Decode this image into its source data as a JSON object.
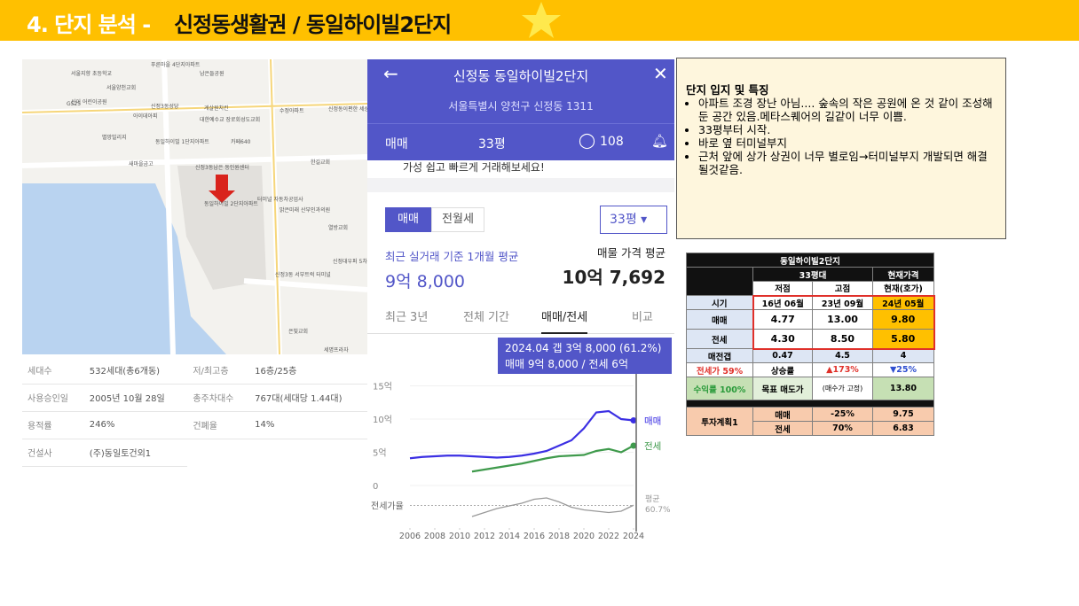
{
  "header": {
    "number_title": "4. 단지 분석 - ",
    "title": "신정동생활권 /  동일하이빌2단지"
  },
  "map": {
    "labels": [
      "푸른마을 4단지아파트",
      "서울지향 초등학교",
      "남은들공원",
      "서울양천교회",
      "신이 어린이공원",
      "GS25",
      "신정3동성당",
      "게살원치킨",
      "수정아파트",
      "신정동이편한 세상아파트",
      "아이데아피",
      "대한예수교 장로회성도교회",
      "별망빌리지",
      "동일하이빌 1단지아파트",
      "카페640",
      "새마을금고",
      "신정3동남은 동인원센터",
      "한길교회",
      "동일하이빌 2단지아파트",
      "터미널 자동차공업사",
      "밝은미래 산부인과의원",
      "열방교회",
      "신정3동 서부트럭 터미널",
      "신정대우퍼 5차오피스",
      "은빛교회",
      "세명프라자"
    ]
  },
  "info_table": {
    "rows": [
      [
        "세대수",
        "532세대(총6개동)",
        "저/최고층",
        "16층/25층"
      ],
      [
        "사용승인일",
        "2005년 10월 28일",
        "총주차대수",
        "767대(세대당 1.44대)"
      ],
      [
        "용적률",
        "246%",
        "건폐율",
        "14%"
      ],
      [
        "건설사",
        "(주)동일토건외1"
      ]
    ]
  },
  "app": {
    "title": "신정동 동일하이빌2단지",
    "address": "서울특별시 양천구 신정동 1311",
    "deal_type": "매매",
    "size": "33평",
    "comments": "108",
    "banner": "가성 쉽고 빠르게 거래해보세요!",
    "tabs": [
      "매매",
      "전월세"
    ],
    "size_select": "33평",
    "recent_label": "최근 실거래 기준 1개월 평균",
    "recent_price": "9억 8,000",
    "listing_label": "매물 가격 평균",
    "listing_price": "10억 7,692",
    "periods": [
      "최근 3년",
      "전체 기간",
      "매매/전세",
      "비교"
    ],
    "tooltip": [
      "2024.04  갭 3억 8,000 (61.2%)",
      "매매 9억 8,000 / 전세 6억"
    ]
  },
  "chart_data": {
    "type": "line",
    "x": [
      2006,
      2007,
      2008,
      2009,
      2010,
      2011,
      2012,
      2013,
      2014,
      2015,
      2016,
      2017,
      2018,
      2019,
      2020,
      2021,
      2022,
      2023,
      2024
    ],
    "xlim": [
      2006,
      2024
    ],
    "xticks": [
      2006,
      2008,
      2010,
      2012,
      2014,
      2016,
      2018,
      2020,
      2022,
      2024
    ],
    "ylim": [
      0,
      15
    ],
    "yticks": [
      {
        "value": 15,
        "label": "15억"
      },
      {
        "value": 10,
        "label": "10억"
      },
      {
        "value": 5,
        "label": "5억"
      },
      0
    ],
    "series": [
      {
        "name": "매매",
        "color": "#3b2fe3",
        "values": [
          4.1,
          4.3,
          4.4,
          4.5,
          4.5,
          4.4,
          4.3,
          4.2,
          4.3,
          4.5,
          4.8,
          5.2,
          6.0,
          6.8,
          8.6,
          11.0,
          11.2,
          10.0,
          9.8
        ]
      },
      {
        "name": "전세",
        "color": "#3f9a4c",
        "values": [
          null,
          null,
          null,
          null,
          null,
          2.1,
          2.4,
          2.7,
          3.0,
          3.3,
          3.7,
          4.1,
          4.4,
          4.5,
          4.6,
          5.2,
          5.5,
          5.0,
          6.0
        ]
      }
    ],
    "ratio": {
      "name": "전세가율",
      "ylim": [
        40,
        80
      ],
      "values": [
        null,
        null,
        null,
        null,
        null,
        44,
        50,
        56,
        60,
        64,
        70,
        72,
        66,
        58,
        54,
        52,
        50,
        52,
        61
      ],
      "average_label": "평균",
      "average": 60.7,
      "average_value_label": "60.7%"
    }
  },
  "notes": {
    "title": "단지 입지 및 특징",
    "bullets": [
      "아파트 조경 장난 아님.... 숲속의 작은 공원에 온 것 같이 조성해 둔 공간 있음.메타스퀘어의 길같이 너무 이쁨.",
      "33평부터 시작.",
      "바로 옆 터미널부지",
      "근처 앞에 상가 상권이 너무 별로임→터미널부지 개발되면 해결될것같음."
    ]
  },
  "invest_table": {
    "title": "동일하이빌2단지",
    "group": "33평대",
    "current": "현재가격",
    "low": "저점",
    "high": "고점",
    "ask": "현재(호가)",
    "rows": [
      [
        "시기",
        "16년 06월",
        "23년 09월",
        "24년 05월"
      ],
      [
        "매매",
        "4.77",
        "13.00",
        "9.80"
      ],
      [
        "전세",
        "4.30",
        "8.50",
        "5.80"
      ],
      [
        "매전갭",
        "0.47",
        "4.5",
        "4"
      ],
      [
        "전세가 59%",
        "상승률",
        "▲173%",
        "▼25%"
      ],
      [
        "수익률 100%",
        "목표 매도가",
        "(매수가 고정)",
        "13.80"
      ]
    ],
    "plan": {
      "name": "투자계획1",
      "rows": [
        [
          "매매",
          "-25%",
          "9.75"
        ],
        [
          "전세",
          "70%",
          "6.83"
        ]
      ]
    }
  }
}
